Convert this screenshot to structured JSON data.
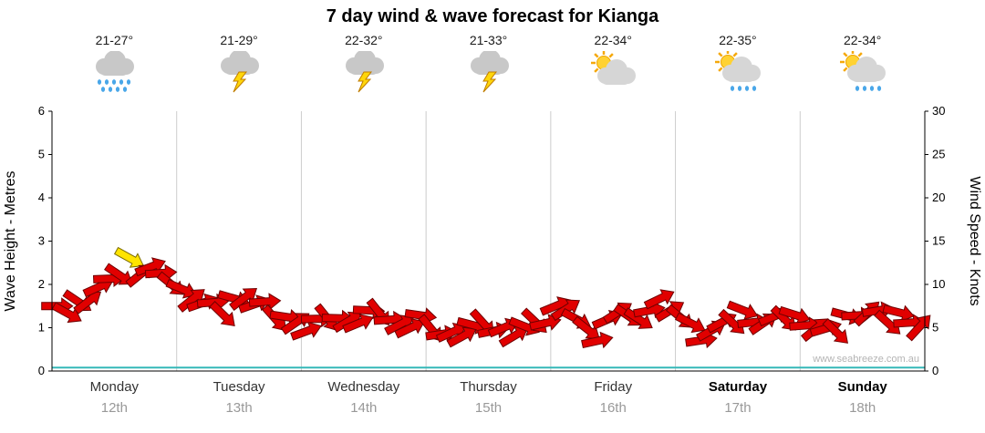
{
  "title": "7 day wind & wave forecast for Kianga",
  "watermark": "www.seabreeze.com.au",
  "colors": {
    "arrow_fill": "#e10000",
    "arrow_stroke": "#6d0000",
    "highlight_fill": "#ffe400",
    "highlight_stroke": "#7a6a00",
    "wave_line": "#35b8b8",
    "gridline": "#cccccc",
    "axis": "#000000",
    "tick_label": "#000000",
    "day_label": "#333333",
    "date_label": "#999999",
    "watermark_color": "#b4b4b4"
  },
  "axes": {
    "left_label": "Wave Height - Metres",
    "right_label": "Wind Speed - Knots",
    "left_ticks": [
      0,
      1,
      2,
      3,
      4,
      5,
      6
    ],
    "right_ticks": [
      0,
      5,
      10,
      15,
      20,
      25,
      30
    ],
    "left_range": [
      0,
      6
    ],
    "right_range": [
      0,
      30
    ]
  },
  "days": [
    {
      "name": "Monday",
      "date": "12th",
      "temp": "21-27°",
      "icon": "heavy-rain",
      "emphasis": false
    },
    {
      "name": "Tuesday",
      "date": "13th",
      "temp": "21-29°",
      "icon": "storm",
      "emphasis": false
    },
    {
      "name": "Wednesday",
      "date": "14th",
      "temp": "22-32°",
      "icon": "storm",
      "emphasis": false
    },
    {
      "name": "Thursday",
      "date": "15th",
      "temp": "21-33°",
      "icon": "storm",
      "emphasis": false
    },
    {
      "name": "Friday",
      "date": "16th",
      "temp": "22-34°",
      "icon": "sun-cloud",
      "emphasis": false
    },
    {
      "name": "Saturday",
      "date": "17th",
      "temp": "22-35°",
      "icon": "sun-cloud-rain",
      "emphasis": true
    },
    {
      "name": "Sunday",
      "date": "18th",
      "temp": "22-34°",
      "icon": "sun-cloud-rain",
      "emphasis": true
    }
  ],
  "chart_data": {
    "type": "line",
    "title": "7 day wind & wave forecast for Kianga",
    "categories": [
      "Monday 12th",
      "Tuesday 13th",
      "Wednesday 14th",
      "Thursday 15th",
      "Friday 16th",
      "Saturday 17th",
      "Sunday 18th"
    ],
    "samples_per_day": 12,
    "left_ylim": [
      0,
      6
    ],
    "right_ylim": [
      0,
      30
    ],
    "xlabel": "",
    "ylabel_left": "Wave Height - Metres",
    "ylabel_right": "Wind Speed - Knots",
    "legend": "none",
    "grid": "vertical-day-separators",
    "series": [
      {
        "name": "Wind Speed",
        "units": "knots",
        "axis": "right",
        "style": "red-wind-arrows",
        "values": [
          7.5,
          7,
          7.5,
          8.5,
          9.5,
          10.5,
          11.5,
          12.5,
          11.5,
          12,
          11,
          10.5,
          9,
          8.5,
          8,
          7.5,
          7,
          8,
          8.5,
          8,
          7.5,
          6.5,
          6,
          5.5,
          5,
          5.5,
          6.5,
          6,
          5.5,
          6,
          6.5,
          7,
          6,
          5,
          5.5,
          6,
          5,
          4.5,
          4,
          4.5,
          5,
          5.5,
          5,
          4.5,
          4.5,
          5,
          5.5,
          6,
          7,
          7.5,
          6,
          4.5,
          4,
          5.5,
          7,
          6.5,
          5.5,
          7.5,
          8,
          7,
          6.5,
          5,
          4,
          4.5,
          5.5,
          6,
          6.5,
          6,
          5.5,
          6,
          6.5,
          6,
          5.5,
          5,
          4.5,
          5,
          6,
          6.5,
          7,
          6.5,
          6,
          6.5,
          5.5,
          5.5
        ]
      },
      {
        "name": "Wave Height",
        "units": "metres",
        "axis": "left",
        "style": "teal-line",
        "constant_value": 0.08
      }
    ],
    "highlight_index": 7,
    "highlight_note": "single yellow arrow at Monday peak (~12.5 knots / ~2.5 m level)"
  }
}
